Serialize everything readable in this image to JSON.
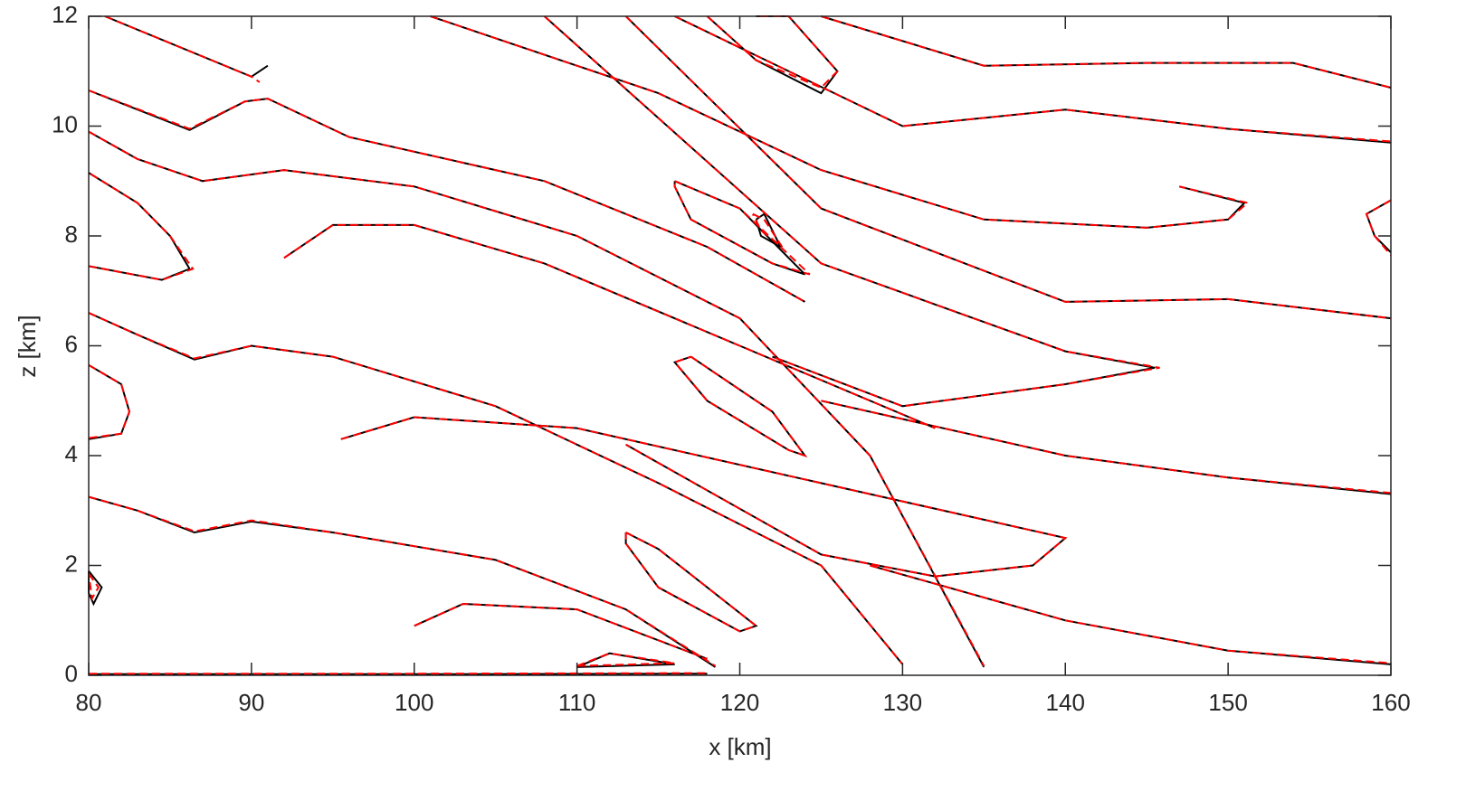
{
  "chart_data": {
    "type": "contour",
    "xlabel": "x [km]",
    "ylabel": "z [km]",
    "xlim": [
      80,
      160
    ],
    "ylim": [
      0,
      12
    ],
    "xticks": [
      80,
      90,
      100,
      110,
      120,
      130,
      140,
      150,
      160
    ],
    "yticks": [
      0,
      2,
      4,
      6,
      8,
      10,
      12
    ],
    "series": [
      {
        "color": "#000000",
        "dash": false,
        "lines": [
          {
            "x": [
              80,
              100,
              118
            ],
            "y": [
              0.02,
              0.02,
              0.03
            ]
          },
          {
            "x": [
              80,
              83,
              86.5,
              90,
              95,
              105,
              113,
              118.5
            ],
            "y": [
              3.25,
              3.0,
              2.6,
              2.8,
              2.6,
              2.1,
              1.2,
              0.15
            ]
          },
          {
            "x": [
              80,
              83,
              86.5,
              90,
              95,
              105,
              115,
              125,
              130
            ],
            "y": [
              6.6,
              6.2,
              5.75,
              6.0,
              5.8,
              4.9,
              3.5,
              2.0,
              0.2
            ]
          },
          {
            "x": [
              80,
              84.5,
              86.2,
              85,
              83,
              80
            ],
            "y": [
              7.45,
              7.2,
              7.4,
              8.0,
              8.6,
              9.15
            ]
          },
          {
            "x": [
              80,
              83,
              87,
              92,
              100,
              110,
              120,
              128,
              135
            ],
            "y": [
              9.9,
              9.4,
              9.0,
              9.2,
              8.9,
              8.0,
              6.5,
              4.0,
              0.15
            ]
          },
          {
            "x": [
              80,
              86.2,
              89.6,
              91,
              96,
              108,
              118,
              124
            ],
            "y": [
              10.65,
              9.93,
              10.45,
              10.5,
              9.8,
              9.0,
              7.8,
              6.8
            ]
          },
          {
            "x": [
              81,
              90,
              91
            ],
            "y": [
              12,
              10.9,
              11.1
            ]
          },
          {
            "x": [
              92,
              95,
              100,
              108,
              120,
              132
            ],
            "y": [
              7.6,
              8.2,
              8.2,
              7.5,
              6.0,
              4.5
            ]
          },
          {
            "x": [
              101,
              115,
              125,
              135,
              145,
              150,
              151,
              147
            ],
            "y": [
              12,
              10.6,
              9.2,
              8.3,
              8.15,
              8.3,
              8.6,
              8.9
            ]
          },
          {
            "x": [
              116,
              130,
              140,
              150,
              160
            ],
            "y": [
              12,
              10.0,
              10.3,
              9.95,
              9.7
            ]
          },
          {
            "x": [
              125,
              135,
              145,
              154,
              160
            ],
            "y": [
              12,
              11.1,
              11.15,
              11.15,
              10.7
            ]
          },
          {
            "x": [
              113,
              125,
              140,
              150,
              160
            ],
            "y": [
              12,
              8.5,
              6.8,
              6.85,
              6.5
            ]
          },
          {
            "x": [
              108,
              125,
              140,
              145.5,
              140,
              130,
              122
            ],
            "y": [
              12,
              7.5,
              5.9,
              5.6,
              5.3,
              4.9,
              5.8
            ]
          },
          {
            "x": [
              95.5,
              100,
              110,
              125,
              140,
              138,
              132,
              125,
              113
            ],
            "y": [
              4.3,
              4.7,
              4.5,
              3.5,
              2.5,
              2.0,
              1.8,
              2.2,
              4.2
            ]
          },
          {
            "x": [
              125,
              140,
              150,
              160
            ],
            "y": [
              5.0,
              4.0,
              3.6,
              3.3
            ]
          },
          {
            "x": [
              128,
              140,
              150,
              160
            ],
            "y": [
              2.0,
              1.0,
              0.45,
              0.2
            ]
          },
          {
            "x": [
              100,
              103,
              110,
              118
            ],
            "y": [
              0.9,
              1.3,
              1.2,
              0.3
            ]
          },
          {
            "x": [
              110,
              112,
              116,
              110
            ],
            "y": [
              0.15,
              0.4,
              0.2,
              0.15
            ]
          },
          {
            "x": [
              117,
              122,
              124,
              123,
              118,
              116,
              117
            ],
            "y": [
              5.8,
              4.8,
              4.0,
              4.1,
              5.0,
              5.7,
              5.8
            ]
          },
          {
            "x": [
              113,
              115,
              121,
              120,
              115,
              113,
              113
            ],
            "y": [
              2.6,
              2.3,
              0.9,
              0.8,
              1.6,
              2.4,
              2.6
            ]
          },
          {
            "x": [
              116,
              120,
              124,
              122,
              117,
              116,
              116
            ],
            "y": [
              9.0,
              8.5,
              7.3,
              7.5,
              8.3,
              8.9,
              9.0
            ]
          },
          {
            "x": [
              121,
              121.5,
              122.5,
              121.3,
              121
            ],
            "y": [
              8.3,
              8.4,
              7.8,
              8.0,
              8.3
            ]
          },
          {
            "x": [
              80,
              80.8,
              80.3,
              80,
              80
            ],
            "y": [
              1.9,
              1.6,
              1.3,
              1.5,
              1.9
            ]
          },
          {
            "x": [
              80,
              82,
              82.5,
              82,
              80
            ],
            "y": [
              5.65,
              5.3,
              4.8,
              4.4,
              4.3
            ]
          },
          {
            "x": [
              160,
              158.5,
              159,
              160
            ],
            "y": [
              8.65,
              8.4,
              8.0,
              7.7
            ]
          },
          {
            "x": [
              118,
              121,
              125,
              126,
              123,
              121
            ],
            "y": [
              12,
              11.2,
              10.6,
              11.0,
              12,
              12
            ]
          }
        ]
      },
      {
        "color": "#ff0000",
        "dash": true,
        "lines": [
          {
            "x": [
              80,
              100,
              118
            ],
            "y": [
              0.03,
              0.03,
              0.04
            ]
          },
          {
            "x": [
              80,
              83,
              86.5,
              90,
              95,
              105,
              113,
              118.5
            ],
            "y": [
              3.25,
              3.0,
              2.62,
              2.82,
              2.6,
              2.1,
              1.2,
              0.17
            ]
          },
          {
            "x": [
              80,
              83,
              86.5,
              90,
              95,
              105,
              115,
              125,
              130
            ],
            "y": [
              6.6,
              6.2,
              5.77,
              6.0,
              5.8,
              4.9,
              3.5,
              2.0,
              0.2
            ]
          },
          {
            "x": [
              80,
              84.5,
              86.4,
              85,
              83,
              80
            ],
            "y": [
              7.45,
              7.2,
              7.4,
              8.0,
              8.6,
              9.15
            ]
          },
          {
            "x": [
              80,
              83,
              87,
              92,
              100,
              110,
              120,
              128,
              135
            ],
            "y": [
              9.9,
              9.4,
              9.0,
              9.2,
              8.9,
              8.0,
              6.5,
              4.0,
              0.17
            ]
          },
          {
            "x": [
              80,
              86.2,
              89.6,
              91,
              96,
              108,
              118,
              124
            ],
            "y": [
              10.65,
              9.95,
              10.45,
              10.5,
              9.8,
              9.0,
              7.8,
              6.8
            ]
          },
          {
            "x": [
              81,
              90,
              90.5
            ],
            "y": [
              12,
              10.9,
              10.8
            ]
          },
          {
            "x": [
              92,
              95,
              100,
              108,
              120,
              132
            ],
            "y": [
              7.6,
              8.2,
              8.2,
              7.5,
              6.0,
              4.5
            ]
          },
          {
            "x": [
              101,
              115,
              125,
              135,
              145,
              150,
              151.2,
              147
            ],
            "y": [
              12,
              10.6,
              9.2,
              8.3,
              8.15,
              8.3,
              8.6,
              8.9
            ]
          },
          {
            "x": [
              116,
              130,
              140,
              150,
              160
            ],
            "y": [
              12,
              10.0,
              10.3,
              9.95,
              9.72
            ]
          },
          {
            "x": [
              125,
              135,
              145,
              154,
              160
            ],
            "y": [
              12,
              11.1,
              11.15,
              11.15,
              10.7
            ]
          },
          {
            "x": [
              113,
              125,
              140,
              150,
              160
            ],
            "y": [
              12,
              8.5,
              6.8,
              6.85,
              6.5
            ]
          },
          {
            "x": [
              108,
              125,
              140,
              145.8,
              140,
              130,
              122
            ],
            "y": [
              12,
              7.5,
              5.9,
              5.6,
              5.3,
              4.9,
              5.8
            ]
          },
          {
            "x": [
              95.5,
              100,
              110,
              125,
              140,
              138,
              132,
              125,
              113
            ],
            "y": [
              4.3,
              4.7,
              4.5,
              3.5,
              2.5,
              2.0,
              1.8,
              2.2,
              4.2
            ]
          },
          {
            "x": [
              125,
              140,
              150,
              160
            ],
            "y": [
              5.0,
              4.0,
              3.6,
              3.32
            ]
          },
          {
            "x": [
              128,
              140,
              150,
              160
            ],
            "y": [
              2.0,
              1.0,
              0.45,
              0.22
            ]
          },
          {
            "x": [
              100,
              103,
              110,
              118
            ],
            "y": [
              0.9,
              1.3,
              1.2,
              0.3
            ]
          },
          {
            "x": [
              110,
              112,
              116,
              110
            ],
            "y": [
              0.17,
              0.4,
              0.22,
              0.17
            ]
          },
          {
            "x": [
              117,
              122,
              124,
              123,
              118,
              116,
              117
            ],
            "y": [
              5.8,
              4.8,
              4.0,
              4.1,
              5.0,
              5.7,
              5.8
            ]
          },
          {
            "x": [
              113,
              115,
              121,
              120,
              115,
              113,
              113
            ],
            "y": [
              2.6,
              2.3,
              0.9,
              0.8,
              1.6,
              2.4,
              2.6
            ]
          },
          {
            "x": [
              116,
              120,
              124.3,
              122,
              117,
              116,
              116
            ],
            "y": [
              9.0,
              8.5,
              7.3,
              7.5,
              8.3,
              8.9,
              9.0
            ]
          },
          {
            "x": [
              120.8,
              121.5,
              122.6,
              121.3,
              120.8
            ],
            "y": [
              8.4,
              8.3,
              7.8,
              8.1,
              8.4
            ]
          },
          {
            "x": [
              80,
              80.6,
              80.2,
              80
            ],
            "y": [
              1.85,
              1.6,
              1.4,
              1.85
            ]
          },
          {
            "x": [
              80,
              82,
              82.5,
              82,
              80
            ],
            "y": [
              5.65,
              5.3,
              4.8,
              4.4,
              4.32
            ]
          },
          {
            "x": [
              160,
              158.5,
              159,
              160
            ],
            "y": [
              8.65,
              8.4,
              8.0,
              7.65
            ]
          },
          {
            "x": [
              118,
              121,
              125,
              126,
              123,
              121
            ],
            "y": [
              12,
              11.2,
              10.7,
              11.0,
              12,
              12
            ]
          }
        ]
      }
    ]
  }
}
